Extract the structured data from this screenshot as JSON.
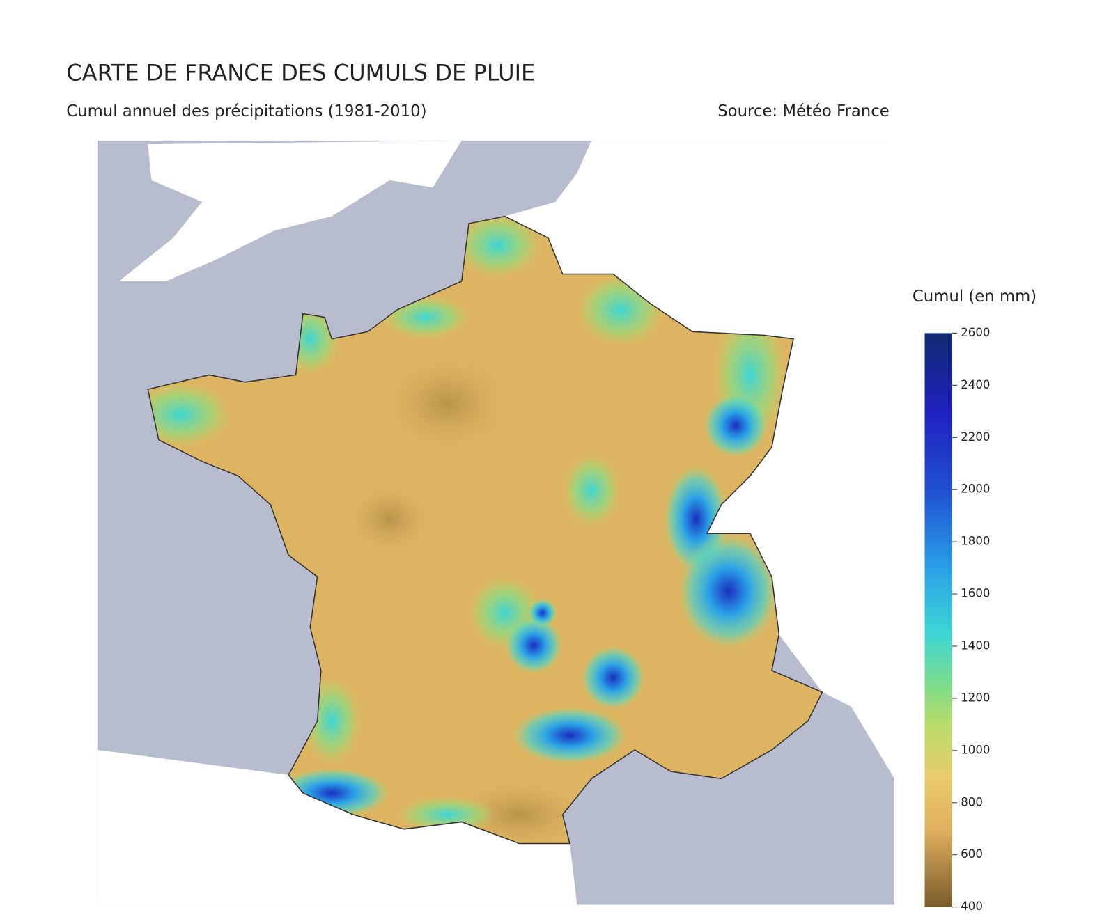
{
  "header": {
    "title": "CARTE DE FRANCE DES CUMULS DE PLUIE",
    "subtitle": "Cumul annuel des précipitations (1981-2010)",
    "source": "Source: Météo France"
  },
  "colorbar": {
    "title": "Cumul (en mm)",
    "lim": [
      400,
      2600
    ],
    "ticks": [
      400,
      600,
      800,
      1000,
      1200,
      1400,
      1600,
      1800,
      2000,
      2200,
      2400,
      2600
    ],
    "stops": [
      {
        "value": 400,
        "color": "#7a5c2a"
      },
      {
        "value": 700,
        "color": "#e0b060"
      },
      {
        "value": 900,
        "color": "#e8cc6a"
      },
      {
        "value": 1100,
        "color": "#b8dc6a"
      },
      {
        "value": 1250,
        "color": "#7ddc8a"
      },
      {
        "value": 1450,
        "color": "#3cd6d6"
      },
      {
        "value": 1700,
        "color": "#2aa0e8"
      },
      {
        "value": 2000,
        "color": "#2050d0"
      },
      {
        "value": 2300,
        "color": "#2020c0"
      },
      {
        "value": 2600,
        "color": "#102a70"
      }
    ]
  }
}
